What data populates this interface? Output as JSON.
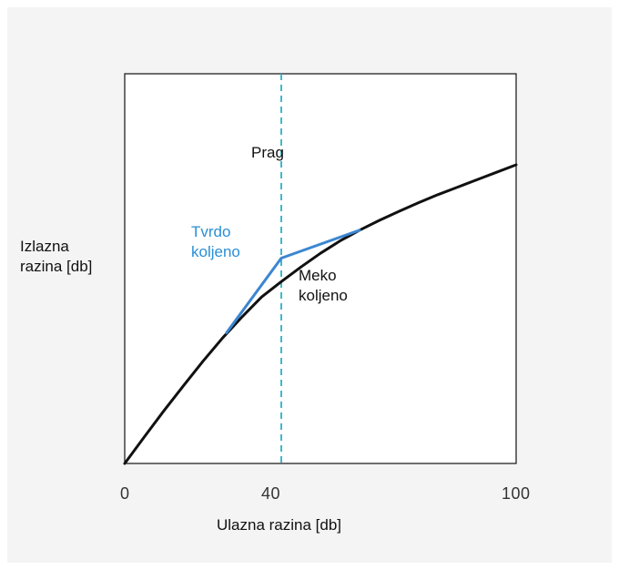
{
  "chart_data": {
    "type": "line",
    "xlabel": "Ulazna razina [db]",
    "ylabel": [
      "Izlazna",
      "razina [db]"
    ],
    "xlim": [
      0,
      100
    ],
    "xticks": [
      "0",
      "40",
      "100"
    ],
    "grid": false,
    "threshold": {
      "x": 40,
      "label": "Prag",
      "color": "#2ab0c8"
    },
    "series": [
      {
        "name": "Meko koljeno",
        "color": "#111111",
        "x": [
          0,
          5,
          10,
          15,
          20,
          25,
          30,
          35,
          40,
          45,
          50,
          55,
          60,
          65,
          70,
          75,
          80,
          85,
          90,
          95,
          100
        ],
        "y": [
          0,
          7.1,
          14.1,
          20.8,
          27.4,
          33.6,
          39.3,
          44.6,
          48.7,
          52.6,
          56.3,
          59.6,
          62.5,
          65.1,
          67.5,
          69.8,
          72.0,
          74.0,
          76.0,
          78.0,
          80.0
        ]
      },
      {
        "name": "Tvrdo koljeno",
        "color": "#3b86d1",
        "x": [
          26,
          40,
          60
        ],
        "y": [
          35.0,
          55.0,
          62.5
        ]
      }
    ],
    "annotations": [
      {
        "key": "prag",
        "lines": [
          "Prag"
        ]
      },
      {
        "key": "hard_knee",
        "lines": [
          "Tvrdo",
          "koljeno"
        ],
        "color": "#2a8fd6"
      },
      {
        "key": "soft_knee",
        "lines": [
          "Meko",
          "koljeno"
        ]
      }
    ]
  }
}
